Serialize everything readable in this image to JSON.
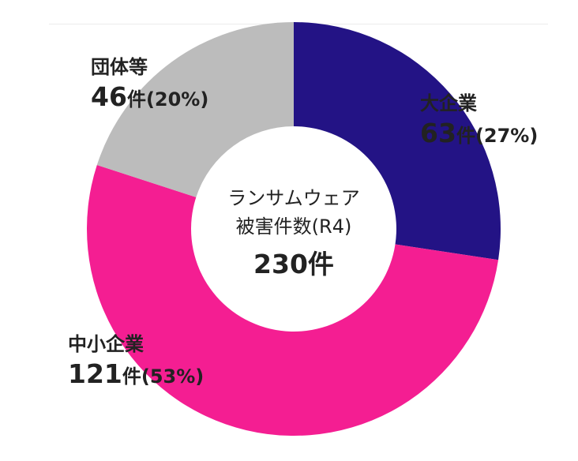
{
  "chart_data": {
    "type": "donut",
    "title": "ランサムウェア被害件数(R4)",
    "center": {
      "line1": "ランサムウェア",
      "line2": "被害件数(R4)",
      "total_label": "230件",
      "total": 230
    },
    "unit": "件",
    "categories": [
      "大企業",
      "中小企業",
      "団体等"
    ],
    "values": [
      63,
      121,
      46
    ],
    "percents": [
      "(27%)",
      "(53%)",
      "(20%)"
    ],
    "colors": [
      "#231385",
      "#f41e92",
      "#bcbcbc"
    ],
    "value_labels": [
      "63",
      "121",
      "46"
    ],
    "start_angle_deg": 0,
    "direction": "clockwise"
  }
}
